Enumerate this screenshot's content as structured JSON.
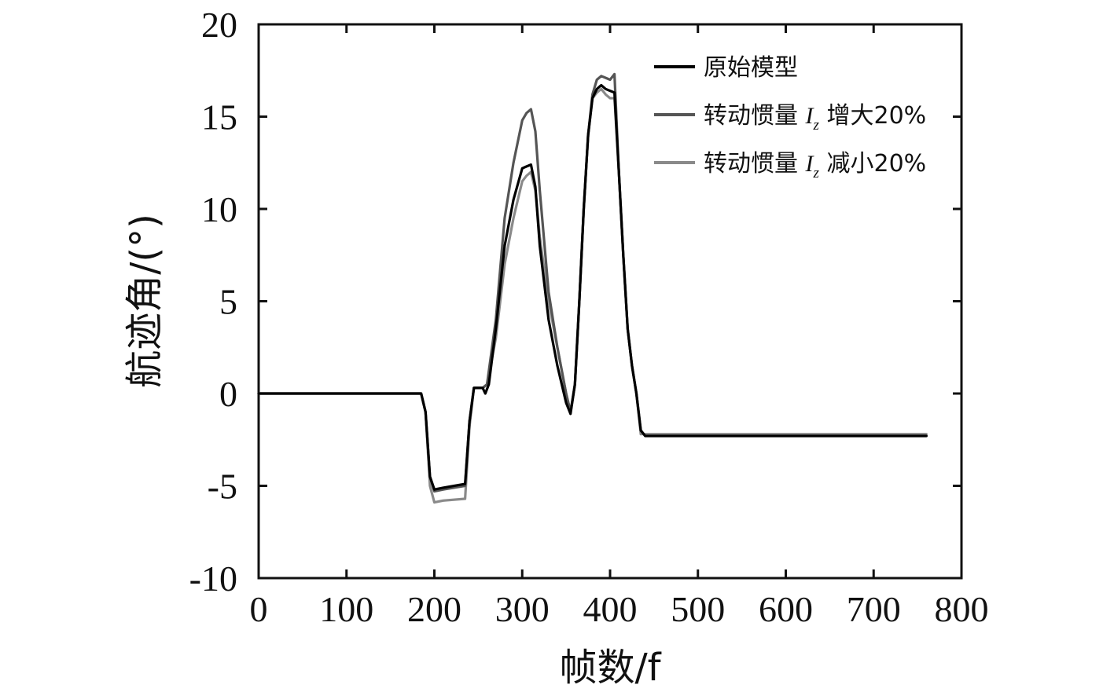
{
  "chart_data": {
    "type": "line",
    "xlabel": "帧数/f",
    "ylabel": "航迹角/(°)",
    "xlim": [
      0,
      800
    ],
    "ylim": [
      -10,
      20
    ],
    "xticks": [
      0,
      100,
      200,
      300,
      400,
      500,
      600,
      700,
      800
    ],
    "yticks": [
      -10,
      -5,
      0,
      5,
      10,
      15,
      20
    ],
    "xtick_labels": [
      "0",
      "100",
      "200",
      "300",
      "400",
      "500",
      "600",
      "700",
      "800"
    ],
    "ytick_labels": [
      "-10",
      "-5",
      "0",
      "5",
      "10",
      "15",
      "20"
    ],
    "grid": false,
    "legend_position": "top-right",
    "series": [
      {
        "name": "原始模型",
        "name_parts": {
          "prefix": "原始模型",
          "var": "",
          "sub": "",
          "suffix": ""
        },
        "color": "#000000",
        "x": [
          0,
          185,
          190,
          195,
          200,
          210,
          235,
          240,
          245,
          250,
          255,
          258,
          262,
          270,
          280,
          290,
          300,
          305,
          310,
          315,
          320,
          330,
          340,
          350,
          355,
          360,
          365,
          370,
          375,
          380,
          385,
          390,
          395,
          400,
          405,
          410,
          415,
          420,
          425,
          430,
          435,
          440,
          760
        ],
        "y": [
          0,
          0,
          -1.0,
          -4.5,
          -5.2,
          -5.1,
          -4.9,
          -1.5,
          0.3,
          0.3,
          0.3,
          0.0,
          0.5,
          3.5,
          8.0,
          10.5,
          12.2,
          12.3,
          12.4,
          11.2,
          8.0,
          4.0,
          1.5,
          -0.5,
          -1.1,
          0.5,
          5.0,
          10.0,
          14.0,
          16.0,
          16.5,
          16.7,
          16.5,
          16.4,
          16.3,
          12.0,
          7.5,
          3.5,
          1.5,
          0.0,
          -2.0,
          -2.3,
          -2.3
        ]
      },
      {
        "name": "转动惯量 Iz 增大20%",
        "name_parts": {
          "prefix": "转动惯量 ",
          "var": "I",
          "sub": "z",
          "suffix": " 增大20%"
        },
        "color": "#555555",
        "x": [
          0,
          185,
          190,
          195,
          200,
          210,
          235,
          240,
          245,
          250,
          255,
          260,
          270,
          280,
          290,
          300,
          305,
          310,
          315,
          320,
          330,
          340,
          350,
          355,
          360,
          365,
          370,
          375,
          380,
          385,
          390,
          395,
          400,
          405,
          410,
          415,
          420,
          425,
          430,
          435,
          440,
          760
        ],
        "y": [
          0,
          0,
          -1.0,
          -4.5,
          -5.3,
          -5.2,
          -5.0,
          -1.5,
          0.3,
          0.3,
          0.3,
          0.5,
          4.0,
          9.5,
          12.5,
          14.8,
          15.2,
          15.4,
          14.2,
          11.0,
          5.5,
          2.5,
          0.0,
          -1.0,
          0.5,
          5.0,
          10.0,
          14.0,
          16.2,
          17.0,
          17.2,
          17.1,
          17.0,
          17.3,
          12.0,
          7.5,
          3.5,
          1.5,
          0.0,
          -2.0,
          -2.3,
          -2.3
        ]
      },
      {
        "name": "转动惯量 Iz 减小20%",
        "name_parts": {
          "prefix": "转动惯量 ",
          "var": "I",
          "sub": "z",
          "suffix": " 减小20%"
        },
        "color": "#8a8a8a",
        "x": [
          0,
          185,
          190,
          195,
          200,
          210,
          235,
          240,
          245,
          250,
          255,
          260,
          270,
          280,
          290,
          300,
          305,
          310,
          315,
          320,
          330,
          340,
          350,
          355,
          360,
          365,
          370,
          375,
          380,
          385,
          390,
          395,
          400,
          405,
          410,
          415,
          420,
          425,
          430,
          435,
          440,
          760
        ],
        "y": [
          0,
          0,
          -1.0,
          -5.0,
          -5.9,
          -5.8,
          -5.7,
          -1.8,
          0.3,
          0.3,
          0.3,
          0.5,
          3.0,
          7.0,
          9.5,
          11.5,
          11.8,
          12.0,
          11.0,
          8.5,
          5.0,
          2.5,
          0.0,
          -1.0,
          0.5,
          5.0,
          10.0,
          14.0,
          16.0,
          16.3,
          16.5,
          16.2,
          16.0,
          16.0,
          12.0,
          7.5,
          3.5,
          1.5,
          0.0,
          -2.2,
          -2.2,
          -2.2
        ]
      }
    ]
  }
}
